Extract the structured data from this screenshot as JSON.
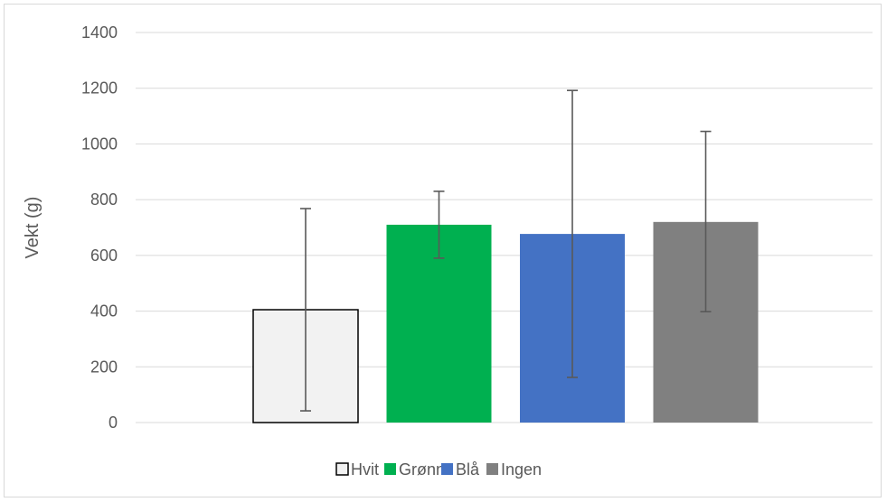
{
  "chart_data": {
    "type": "bar",
    "ylabel": "Vekt (g)",
    "ylim": [
      0,
      1400
    ],
    "y_ticks": [
      0,
      200,
      400,
      600,
      800,
      1000,
      1200,
      1400
    ],
    "y_tick_labels": [
      "0",
      "200",
      "400",
      "600",
      "800",
      "1000",
      "1200",
      "1400"
    ],
    "grid": true,
    "legend_position": "bottom",
    "series": [
      {
        "name": "Hvit",
        "value": 405,
        "err_low": 42,
        "err_high": 768,
        "color": "#f2f2f2",
        "border": "#000000"
      },
      {
        "name": "Grønn",
        "value": 710,
        "err_low": 590,
        "err_high": 830,
        "color": "#00b050",
        "border": null
      },
      {
        "name": "Blå",
        "value": 677,
        "err_low": 162,
        "err_high": 1192,
        "color": "#4472c4",
        "border": null
      },
      {
        "name": "Ingen",
        "value": 720,
        "err_low": 398,
        "err_high": 1045,
        "color": "#808080",
        "border": null
      }
    ]
  }
}
